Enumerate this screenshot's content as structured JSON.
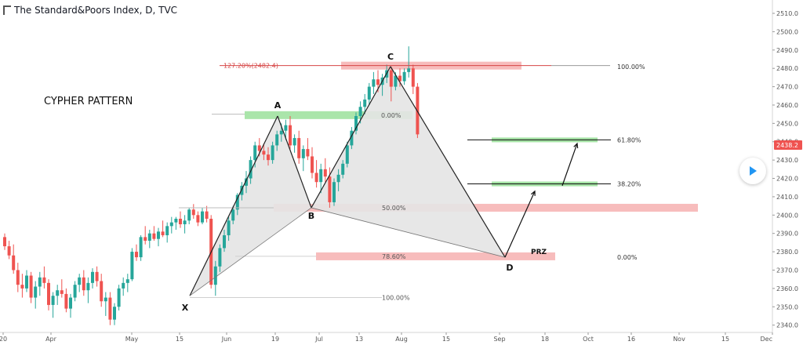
{
  "header": {
    "logo_icon": "tradingview-logo-icon",
    "title": "The Standard&Poors Index, D, TVC"
  },
  "colors": {
    "up": "#26a69a",
    "down": "#ef5350",
    "green_zone": "#9be09b",
    "red_zone": "#f4a6a6",
    "pattern_fill": "#e4e4e4",
    "price_tag": "#ef5350"
  },
  "chart_data": {
    "type": "candlestick",
    "title": "CYPHER PATTERN",
    "y_axis": {
      "ticks": [
        "2510.0",
        "2500.0",
        "2490.0",
        "2480.0",
        "2470.0",
        "2460.0",
        "2450.0",
        "2440.0",
        "2430.0",
        "2420.0",
        "2410.0",
        "2400.0",
        "2390.0",
        "2380.0",
        "2370.0",
        "2360.0",
        "2350.0",
        "2340.0"
      ],
      "range": [
        2336,
        2513
      ]
    },
    "x_axis": {
      "ticks": [
        "20",
        "Apr",
        "May",
        "15",
        "Jun",
        "19",
        "Jul",
        "13",
        "Aug",
        "15",
        "Sep",
        "18",
        "Oct",
        "16",
        "Nov",
        "15",
        "Dec"
      ]
    },
    "last_price_label": "2438.2",
    "pattern_points": [
      {
        "label": "X",
        "price": 2356
      },
      {
        "label": "A",
        "price": 2454
      },
      {
        "label": "B",
        "price": 2404
      },
      {
        "label": "C",
        "price": 2481
      },
      {
        "label": "D",
        "price": 2377
      }
    ],
    "fib_levels": [
      {
        "label": "127.20%(2482.4)",
        "price": 2481.5
      },
      {
        "label": "0.00%",
        "price": 2454.5
      },
      {
        "label": "50.00%",
        "price": 2404
      },
      {
        "label": "78.60%",
        "price": 2377.5
      },
      {
        "label": "100.00%",
        "price": 2355
      }
    ],
    "target_levels": [
      {
        "label": "100.00%",
        "price": 2481
      },
      {
        "label": "61.80%",
        "price": 2441
      },
      {
        "label": "38.20%",
        "price": 2417
      },
      {
        "label": "0.00%",
        "price": 2377
      }
    ],
    "zone_label": "PRZ",
    "candles": [
      [
        2388,
        2390,
        2381,
        2383
      ],
      [
        2383,
        2386,
        2376,
        2378
      ],
      [
        2378,
        2384,
        2368,
        2370
      ],
      [
        2370,
        2374,
        2358,
        2362
      ],
      [
        2362,
        2368,
        2355,
        2360
      ],
      [
        2360,
        2370,
        2358,
        2367
      ],
      [
        2367,
        2369,
        2352,
        2355
      ],
      [
        2355,
        2364,
        2349,
        2361
      ],
      [
        2361,
        2369,
        2356,
        2366
      ],
      [
        2366,
        2372,
        2360,
        2363
      ],
      [
        2363,
        2365,
        2348,
        2351
      ],
      [
        2351,
        2358,
        2344,
        2356
      ],
      [
        2356,
        2362,
        2351,
        2359
      ],
      [
        2359,
        2365,
        2355,
        2357
      ],
      [
        2357,
        2360,
        2347,
        2349
      ],
      [
        2349,
        2357,
        2344,
        2355
      ],
      [
        2355,
        2364,
        2353,
        2362
      ],
      [
        2362,
        2368,
        2358,
        2366
      ],
      [
        2366,
        2370,
        2356,
        2359
      ],
      [
        2359,
        2366,
        2352,
        2363
      ],
      [
        2363,
        2371,
        2360,
        2369
      ],
      [
        2369,
        2372,
        2361,
        2364
      ],
      [
        2364,
        2368,
        2350,
        2353
      ],
      [
        2353,
        2358,
        2345,
        2355
      ],
      [
        2355,
        2358,
        2340,
        2343
      ],
      [
        2343,
        2352,
        2340,
        2350
      ],
      [
        2350,
        2362,
        2348,
        2360
      ],
      [
        2360,
        2366,
        2356,
        2363
      ],
      [
        2363,
        2368,
        2358,
        2365
      ],
      [
        2365,
        2382,
        2364,
        2380
      ],
      [
        2380,
        2384,
        2375,
        2377
      ],
      [
        2377,
        2389,
        2375,
        2388
      ],
      [
        2388,
        2394,
        2384,
        2386
      ],
      [
        2386,
        2392,
        2382,
        2390
      ],
      [
        2390,
        2394,
        2386,
        2387
      ],
      [
        2387,
        2393,
        2383,
        2391
      ],
      [
        2391,
        2397,
        2388,
        2389
      ],
      [
        2389,
        2396,
        2385,
        2394
      ],
      [
        2394,
        2399,
        2390,
        2396
      ],
      [
        2396,
        2399,
        2392,
        2398
      ],
      [
        2398,
        2402,
        2393,
        2395
      ],
      [
        2395,
        2400,
        2390,
        2397
      ],
      [
        2397,
        2404,
        2395,
        2403
      ],
      [
        2403,
        2406,
        2398,
        2400
      ],
      [
        2400,
        2402,
        2394,
        2396
      ],
      [
        2396,
        2404,
        2395,
        2402
      ],
      [
        2402,
        2405,
        2396,
        2398
      ],
      [
        2398,
        2400,
        2360,
        2362
      ],
      [
        2362,
        2375,
        2356,
        2372
      ],
      [
        2372,
        2384,
        2369,
        2382
      ],
      [
        2382,
        2392,
        2380,
        2389
      ],
      [
        2389,
        2399,
        2386,
        2397
      ],
      [
        2397,
        2405,
        2395,
        2403
      ],
      [
        2403,
        2412,
        2400,
        2411
      ],
      [
        2411,
        2418,
        2408,
        2416
      ],
      [
        2416,
        2424,
        2412,
        2420
      ],
      [
        2420,
        2432,
        2417,
        2430
      ],
      [
        2430,
        2440,
        2426,
        2438
      ],
      [
        2438,
        2442,
        2432,
        2435
      ],
      [
        2435,
        2439,
        2430,
        2433
      ],
      [
        2433,
        2437,
        2427,
        2430
      ],
      [
        2430,
        2440,
        2428,
        2438
      ],
      [
        2438,
        2446,
        2435,
        2444
      ],
      [
        2444,
        2450,
        2440,
        2446
      ],
      [
        2446,
        2452,
        2441,
        2449
      ],
      [
        2449,
        2454,
        2436,
        2438
      ],
      [
        2438,
        2444,
        2434,
        2442
      ],
      [
        2442,
        2446,
        2428,
        2431
      ],
      [
        2431,
        2438,
        2424,
        2436
      ],
      [
        2436,
        2442,
        2430,
        2432
      ],
      [
        2432,
        2437,
        2420,
        2423
      ],
      [
        2423,
        2430,
        2415,
        2418
      ],
      [
        2418,
        2428,
        2412,
        2425
      ],
      [
        2425,
        2431,
        2418,
        2421
      ],
      [
        2421,
        2426,
        2404,
        2407
      ],
      [
        2407,
        2420,
        2405,
        2418
      ],
      [
        2418,
        2425,
        2413,
        2422
      ],
      [
        2422,
        2430,
        2420,
        2428
      ],
      [
        2428,
        2440,
        2426,
        2438
      ],
      [
        2438,
        2448,
        2436,
        2446
      ],
      [
        2446,
        2456,
        2444,
        2454
      ],
      [
        2454,
        2462,
        2450,
        2459
      ],
      [
        2459,
        2466,
        2455,
        2463
      ],
      [
        2463,
        2472,
        2460,
        2470
      ],
      [
        2470,
        2478,
        2466,
        2474
      ],
      [
        2474,
        2479,
        2467,
        2471
      ],
      [
        2471,
        2477,
        2465,
        2475
      ],
      [
        2475,
        2482,
        2472,
        2479
      ],
      [
        2479,
        2481,
        2462,
        2470
      ],
      [
        2470,
        2478,
        2468,
        2476
      ],
      [
        2476,
        2480,
        2470,
        2473
      ],
      [
        2473,
        2480,
        2471,
        2478
      ],
      [
        2478,
        2492,
        2475,
        2480
      ],
      [
        2480,
        2482,
        2466,
        2470
      ],
      [
        2470,
        2472,
        2442,
        2444
      ]
    ]
  }
}
